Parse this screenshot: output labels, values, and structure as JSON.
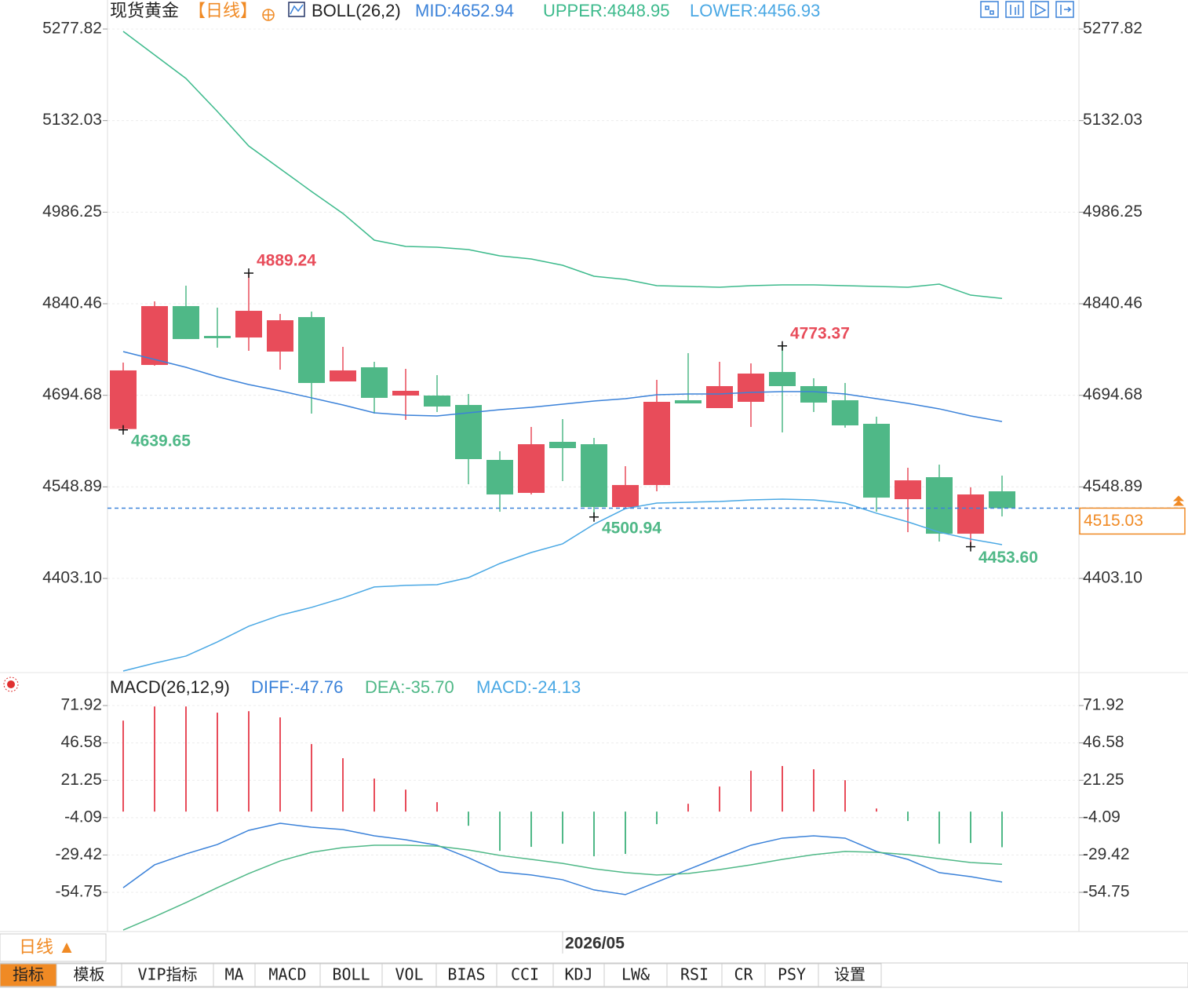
{
  "title": "现货黄金",
  "period": "【日线】",
  "chart_data": [
    {
      "type": "candlestick",
      "indicator": "BOLL(26,2)",
      "categories": [
        null,
        null,
        null,
        null,
        null,
        null,
        null,
        null,
        null,
        null,
        null,
        null,
        null,
        null,
        "2026/05",
        null,
        null,
        null,
        null,
        null,
        null,
        null,
        null,
        null,
        null,
        null,
        null,
        null,
        null
      ],
      "open": [
        4641.0,
        4743.0,
        4836.7,
        4789.2,
        4786.7,
        4764.3,
        4819.2,
        4716.8,
        4739.3,
        4694.3,
        4694.3,
        4679.3,
        4591.8,
        4539.3,
        4620.6,
        4616.8,
        4516.8,
        4551.8,
        4686.8,
        4674.3,
        4684.3,
        4731.8,
        4709.3,
        4686.8,
        4649.3,
        4529.3,
        4564.3,
        4474.3,
        4541.8
      ],
      "high": [
        4746.8,
        4844.2,
        4869.2,
        4834.2,
        4889.24,
        4824.2,
        4828.0,
        4771.8,
        4748.0,
        4736.8,
        4726.8,
        4696.8,
        4605.6,
        4644.3,
        4656.8,
        4626.8,
        4581.8,
        4719.3,
        4761.8,
        4748.0,
        4745.5,
        4773.37,
        4721.8,
        4714.3,
        4660.6,
        4579.3,
        4584.3,
        4548.1,
        4566.8
      ],
      "low": [
        4639.65,
        4741.8,
        4784.2,
        4770.5,
        4765.5,
        4735.5,
        4665.6,
        4716.8,
        4665.6,
        4655.6,
        4668.1,
        4553.1,
        4509.3,
        4536.8,
        4558.1,
        4500.94,
        4514.3,
        4541.8,
        4681.8,
        4674.3,
        4644.3,
        4635.6,
        4668.1,
        4643.1,
        4509.3,
        4476.8,
        4461.8,
        4453.6,
        4501.8
      ],
      "close": [
        4734.3,
        4836.7,
        4784.2,
        4785.5,
        4829.2,
        4814.2,
        4714.3,
        4734.3,
        4690.6,
        4701.8,
        4676.8,
        4593.1,
        4536.8,
        4616.8,
        4610.6,
        4516.8,
        4551.8,
        4684.3,
        4681.8,
        4709.3,
        4729.3,
        4709.3,
        4683.1,
        4646.8,
        4531.8,
        4559.3,
        4474.3,
        4536.8,
        4515.03
      ],
      "up_color": "#e84c5a",
      "down_color": "#4fb887",
      "series": [
        {
          "name": "MID",
          "label": "MID:4652.94",
          "color": "#3b82d9",
          "values": [
            4764.3,
            4751.8,
            4739.3,
            4724.3,
            4711.8,
            4701.8,
            4690.6,
            4679.3,
            4666.8,
            4663.1,
            4661.8,
            4666.8,
            4671.8,
            4675.6,
            4680.6,
            4685.6,
            4689.3,
            4695.6,
            4696.8,
            4696.8,
            4699.3,
            4700.6,
            4700.6,
            4696.8,
            4689.3,
            4681.8,
            4673.1,
            4661.8,
            4652.94
          ]
        },
        {
          "name": "UPPER",
          "label": "UPPER:4848.95",
          "color": "#3dba8c",
          "values": [
            5274.1,
            5236.6,
            5199.1,
            5146.6,
            5091.6,
            5055.4,
            5019.2,
            4984.2,
            4941.7,
            4931.7,
            4930.5,
            4926.7,
            4916.7,
            4911.7,
            4901.7,
            4884.2,
            4879.2,
            4869.2,
            4868.0,
            4866.7,
            4869.2,
            4870.5,
            4870.5,
            4869.2,
            4868.0,
            4866.7,
            4871.7,
            4854.2,
            4848.95
          ]
        },
        {
          "name": "LOWER",
          "label": "LOWER:4456.93",
          "color": "#4aa8e4",
          "values": [
            4255.7,
            4268.2,
            4279.5,
            4302.0,
            4327.0,
            4344.5,
            4357.0,
            4372.0,
            4389.5,
            4392.0,
            4393.2,
            4404.4,
            4426.9,
            4444.4,
            4458.2,
            4489.4,
            4514.3,
            4523.1,
            4524.4,
            4525.6,
            4528.1,
            4529.3,
            4528.1,
            4523.1,
            4506.9,
            4493.1,
            4476.8,
            4465.6,
            4456.93
          ]
        }
      ],
      "annotations": [
        {
          "value": 4889.24
        },
        {
          "value": 4639.65
        },
        {
          "value": 4500.94
        },
        {
          "value": 4773.37
        },
        {
          "value": 4453.6,
          "label": "4453.60"
        }
      ],
      "last_price": 4515.03,
      "last_price_color": "#f08a24",
      "ylim": [
        4255.7,
        5324.05
      ],
      "yticks": [
        5277.82,
        5132.03,
        4986.25,
        4840.46,
        4694.68,
        4548.89,
        {
          "value": 4403.1,
          "label": "4403.10"
        }
      ],
      "grid": true
    },
    {
      "type": "macd",
      "indicator": "MACD(26,12,9)",
      "series": [
        {
          "name": "DIFF",
          "label": "DIFF:-47.76",
          "color": "#3b82d9",
          "kind": "line",
          "values": [
            -51.6,
            -36.1,
            -28.7,
            -22.3,
            -12.7,
            -7.9,
            -10.6,
            -12.2,
            -16.4,
            -19.1,
            -22.8,
            -31.3,
            -40.9,
            -43.0,
            -46.2,
            -53.1,
            -56.3,
            -47.8,
            -39.3,
            -30.8,
            -22.8,
            -18.0,
            -16.4,
            -18.0,
            -27.0,
            -32.4,
            -41.4,
            -44.1,
            -47.76
          ]
        },
        {
          "name": "DEA",
          "label": "DEA:-35.70",
          "color": "#4fb887",
          "kind": "line",
          "values": [
            -80.3,
            -71.3,
            -61.7,
            -51.6,
            -42.0,
            -33.5,
            -27.6,
            -24.4,
            -22.8,
            -22.8,
            -23.4,
            -26.0,
            -29.7,
            -32.4,
            -35.1,
            -38.8,
            -41.4,
            -43.0,
            -42.0,
            -39.3,
            -36.1,
            -32.4,
            -29.2,
            -27.0,
            -27.6,
            -29.2,
            -31.9,
            -34.5,
            -35.7
          ]
        },
        {
          "name": "MACD",
          "label": "MACD:-24.13",
          "color": "#4aa8e4",
          "kind": "bar",
          "positive_color": "#e84c5a",
          "negative_color": "#4fb887",
          "values": [
            61.7,
            71.3,
            71.3,
            67.1,
            68.1,
            63.9,
            45.8,
            36.2,
            22.4,
            14.9,
            6.4,
            -9.6,
            -26.6,
            -23.9,
            -21.8,
            -30.3,
            -28.7,
            -8.5,
            5.3,
            17.0,
            27.7,
            30.9,
            28.7,
            21.3,
            2.1,
            -6.4,
            -21.8,
            -21.3,
            -24.13
          ]
        }
      ],
      "ylim": [
        -81.36,
        92.68
      ],
      "yticks": [
        71.92,
        46.58,
        21.25,
        -4.09,
        -29.42,
        -54.75
      ],
      "grid": true
    }
  ],
  "toolbar": {
    "period": "日线 ▲",
    "tabs": [
      "指标",
      "模板",
      "VIP指标",
      "MA",
      "MACD",
      "BOLL",
      "VOL",
      "BIAS",
      "CCI",
      "KDJ",
      "LW&",
      "RSI",
      "CR",
      "PSY",
      "设置"
    ]
  }
}
